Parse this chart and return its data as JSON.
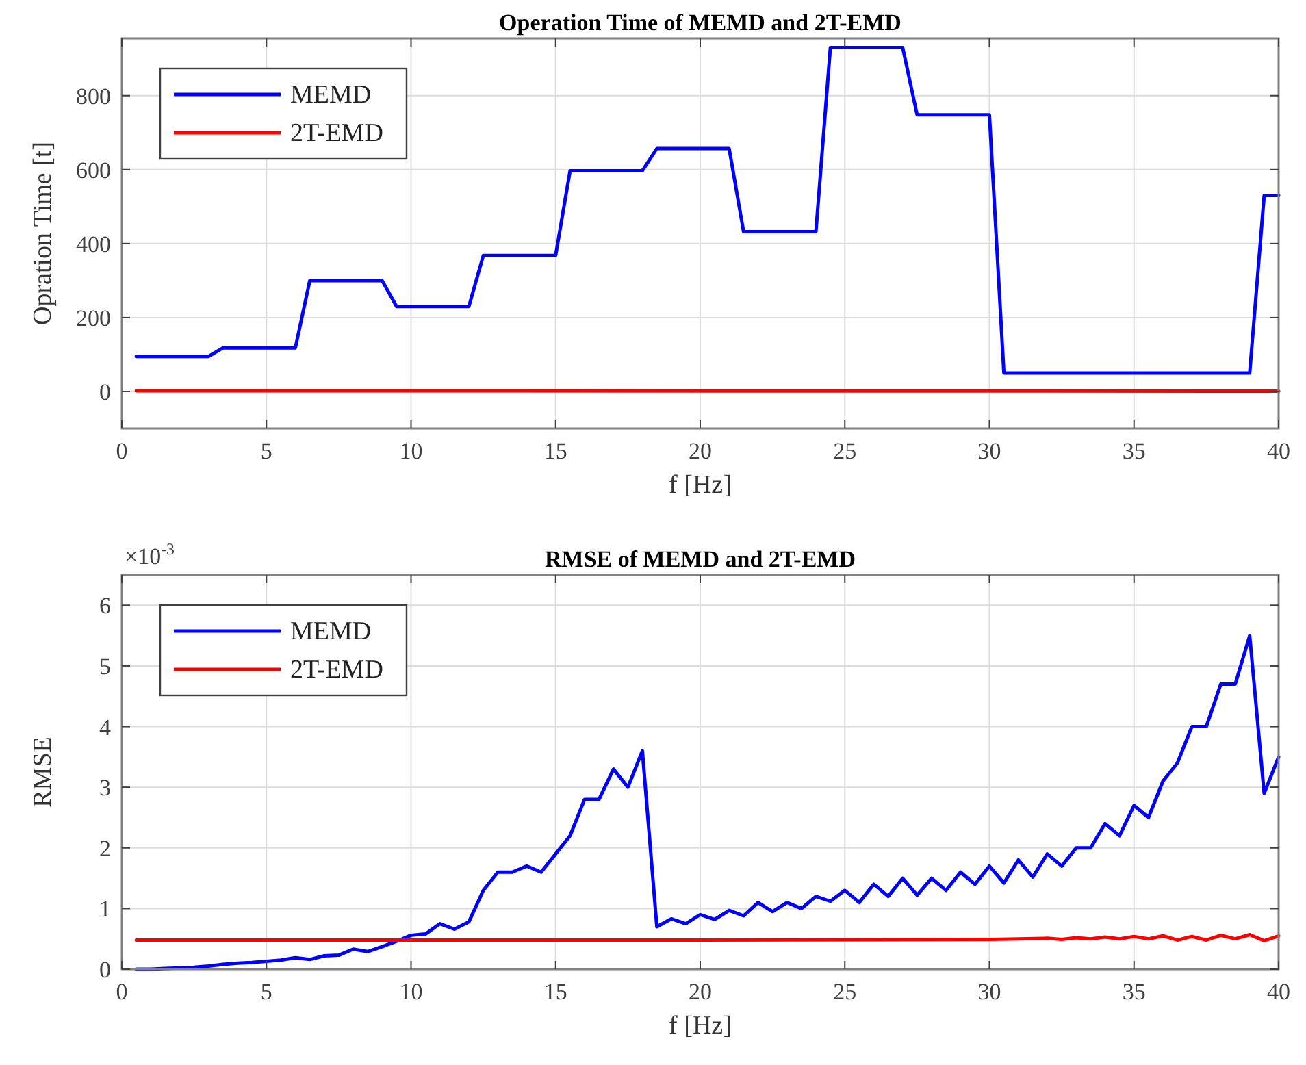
{
  "chart_data": [
    {
      "type": "line",
      "title": "Operation Time of MEMD and 2T-EMD",
      "xlabel": "f [Hz]",
      "ylabel": "Opration Time [t]",
      "xlim": [
        0,
        40
      ],
      "xticks": [
        0,
        5,
        10,
        15,
        20,
        25,
        30,
        35,
        40
      ],
      "ylim": [
        -100,
        955
      ],
      "yticks": [
        0,
        200,
        400,
        600,
        800
      ],
      "grid": true,
      "legend": "top left",
      "line_style": "solid",
      "series": [
        {
          "name": "MEMD",
          "color": "#0000ff",
          "x": [
            0.5,
            3,
            3.5,
            6,
            6.5,
            9,
            9.5,
            12,
            12.5,
            15,
            15.5,
            18,
            18.5,
            21,
            21.5,
            24,
            24.5,
            27,
            27.5,
            30,
            30.5,
            39,
            39.5,
            40
          ],
          "values": [
            95,
            95,
            118,
            118,
            300,
            300,
            230,
            230,
            368,
            368,
            597,
            597,
            657,
            657,
            432,
            432,
            930,
            930,
            748,
            748,
            50,
            50,
            530,
            530
          ]
        },
        {
          "name": "2T-EMD",
          "color": "#ff0000",
          "x": [
            0.5,
            40
          ],
          "values": [
            2,
            1
          ]
        }
      ]
    },
    {
      "type": "line",
      "title": "RMSE of MEMD and 2T-EMD",
      "xlabel": "f [Hz]",
      "ylabel": "RMSE",
      "annotations": [
        "×10$^{-3}$"
      ],
      "xlim": [
        0,
        40
      ],
      "xticks": [
        0,
        5,
        10,
        15,
        20,
        25,
        30,
        35,
        40
      ],
      "ylim": [
        0,
        6.5
      ],
      "yticks": [
        0,
        1,
        2,
        3,
        4,
        5,
        6
      ],
      "grid": true,
      "legend": "top left",
      "line_style": "solid",
      "series": [
        {
          "name": "MEMD",
          "color": "#0000ff",
          "x": [
            0.5,
            1,
            1.5,
            2,
            2.5,
            3,
            3.5,
            4,
            4.5,
            5,
            5.5,
            6,
            6.5,
            7,
            7.5,
            8,
            8.5,
            9,
            9.5,
            10,
            10.5,
            11,
            11.5,
            12,
            12.5,
            13,
            13.5,
            14,
            14.5,
            15,
            15.5,
            16,
            16.5,
            17,
            17.5,
            18,
            18.5,
            19,
            19.5,
            20,
            20.5,
            21,
            21.5,
            22,
            22.5,
            23,
            23.5,
            24,
            24.5,
            25,
            25.5,
            26,
            26.5,
            27,
            27.5,
            28,
            28.5,
            29,
            29.5,
            30,
            30.5,
            31,
            31.5,
            32,
            32.5,
            33,
            33.5,
            34,
            34.5,
            35,
            35.5,
            36,
            36.5,
            37,
            37.5,
            38,
            38.5,
            39,
            39.5,
            40
          ],
          "values": [
            0,
            0,
            0.01,
            0.02,
            0.03,
            0.05,
            0.08,
            0.1,
            0.11,
            0.13,
            0.15,
            0.19,
            0.16,
            0.22,
            0.23,
            0.33,
            0.29,
            0.37,
            0.46,
            0.56,
            0.58,
            0.75,
            0.66,
            0.78,
            1.3,
            1.6,
            1.6,
            1.7,
            1.6,
            1.9,
            2.2,
            2.8,
            2.8,
            3.3,
            3.0,
            3.6,
            0.7,
            0.83,
            0.75,
            0.9,
            0.82,
            0.97,
            0.88,
            1.1,
            0.95,
            1.1,
            1.0,
            1.2,
            1.12,
            1.3,
            1.1,
            1.4,
            1.2,
            1.5,
            1.22,
            1.5,
            1.3,
            1.6,
            1.4,
            1.7,
            1.42,
            1.8,
            1.52,
            1.9,
            1.7,
            2.0,
            2.0,
            2.4,
            2.2,
            2.7,
            2.5,
            3.1,
            3.4,
            4.0,
            4.0,
            4.7,
            4.7,
            5.5,
            2.9,
            3.5
          ]
        },
        {
          "name": "2T-EMD",
          "color": "#ff0000",
          "x": [
            0.5,
            10,
            20,
            30,
            31,
            32,
            32.5,
            33,
            33.5,
            34,
            34.5,
            35,
            35.5,
            36,
            36.5,
            37,
            37.5,
            38,
            38.5,
            39,
            39.5,
            40
          ],
          "values": [
            0.48,
            0.48,
            0.48,
            0.49,
            0.5,
            0.51,
            0.49,
            0.52,
            0.5,
            0.53,
            0.5,
            0.54,
            0.5,
            0.55,
            0.48,
            0.54,
            0.48,
            0.56,
            0.5,
            0.57,
            0.47,
            0.55
          ]
        }
      ]
    }
  ]
}
